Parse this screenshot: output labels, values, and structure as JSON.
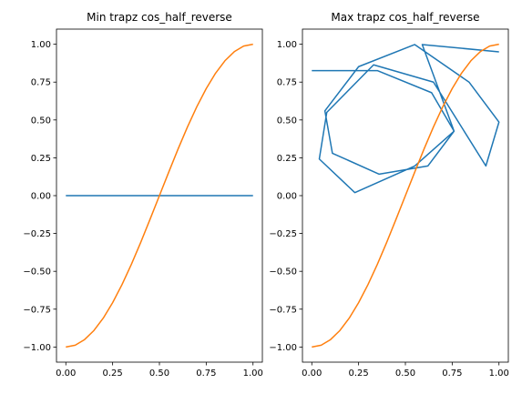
{
  "chart_data": [
    {
      "type": "line",
      "title": "Min trapz cos_half_reverse",
      "xlabel": "",
      "ylabel": "",
      "xlim": [
        -0.05,
        1.05
      ],
      "ylim": [
        -1.1,
        1.1
      ],
      "xticks": [
        "0.00",
        "0.25",
        "0.50",
        "0.75",
        "1.00"
      ],
      "yticks": [
        "−1.00",
        "−0.75",
        "−0.50",
        "−0.25",
        "0.00",
        "0.25",
        "0.50",
        "0.75",
        "1.00"
      ],
      "grid": false,
      "series": [
        {
          "color": "#1f77b4",
          "x": [
            0.0,
            1.0
          ],
          "y": [
            0.0,
            0.0
          ]
        },
        {
          "color": "#ff7f0e",
          "x": [
            0.0,
            0.05,
            0.1,
            0.15,
            0.2,
            0.25,
            0.3,
            0.35,
            0.4,
            0.45,
            0.5,
            0.55,
            0.6,
            0.65,
            0.7,
            0.75,
            0.8,
            0.85,
            0.9,
            0.95,
            1.0
          ],
          "y": [
            -1.0,
            -0.988,
            -0.951,
            -0.891,
            -0.809,
            -0.707,
            -0.588,
            -0.454,
            -0.309,
            -0.156,
            0.0,
            0.156,
            0.309,
            0.454,
            0.588,
            0.707,
            0.809,
            0.891,
            0.951,
            0.988,
            1.0
          ]
        }
      ]
    },
    {
      "type": "line",
      "title": "Max trapz cos_half_reverse",
      "xlabel": "",
      "ylabel": "",
      "xlim": [
        -0.05,
        1.05
      ],
      "ylim": [
        -1.1,
        1.1
      ],
      "xticks": [
        "0.00",
        "0.25",
        "0.50",
        "0.75",
        "1.00"
      ],
      "yticks": [
        "−1.00",
        "−0.75",
        "−0.50",
        "−0.25",
        "0.00",
        "0.25",
        "0.50",
        "0.75",
        "1.00"
      ],
      "grid": false,
      "series": [
        {
          "color": "#1f77b4",
          "x": [
            0.0,
            0.35,
            0.64,
            0.76,
            0.55,
            0.23,
            0.04,
            0.08,
            0.33,
            0.65,
            0.93,
            1.0,
            0.84,
            0.55,
            0.25,
            0.07,
            0.11,
            0.36,
            0.62,
            0.76,
            0.59,
            1.0
          ],
          "y": [
            0.826,
            0.826,
            0.68,
            0.426,
            0.196,
            0.02,
            0.242,
            0.55,
            0.864,
            0.75,
            0.196,
            0.486,
            0.75,
            0.998,
            0.852,
            0.56,
            0.28,
            0.142,
            0.196,
            0.426,
            0.998,
            0.95
          ]
        },
        {
          "color": "#ff7f0e",
          "x": [
            0.0,
            0.05,
            0.1,
            0.15,
            0.2,
            0.25,
            0.3,
            0.35,
            0.4,
            0.45,
            0.5,
            0.55,
            0.6,
            0.65,
            0.7,
            0.75,
            0.8,
            0.85,
            0.9,
            0.95,
            1.0
          ],
          "y": [
            -1.0,
            -0.988,
            -0.951,
            -0.891,
            -0.809,
            -0.707,
            -0.588,
            -0.454,
            -0.309,
            -0.156,
            0.0,
            0.156,
            0.309,
            0.454,
            0.588,
            0.707,
            0.809,
            0.891,
            0.951,
            0.988,
            1.0
          ]
        }
      ]
    }
  ]
}
